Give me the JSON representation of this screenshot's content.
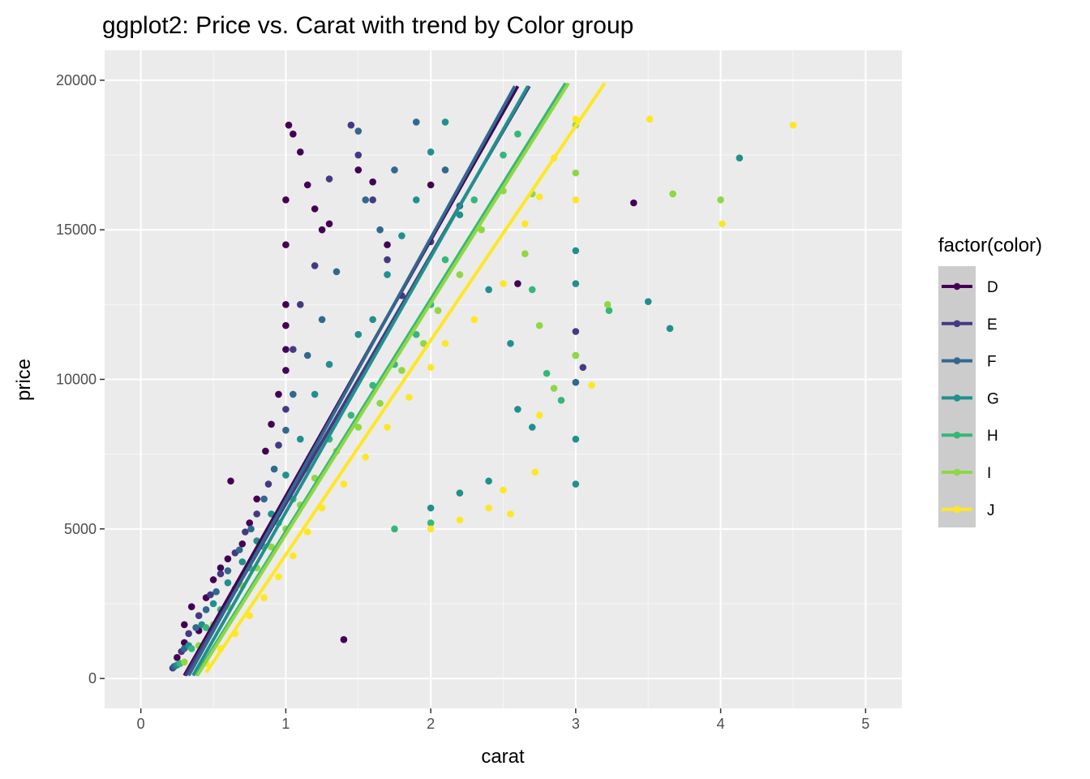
{
  "chart_data": {
    "type": "scatter",
    "title": "ggplot2: Price vs. Carat with trend by Color group",
    "xlabel": "carat",
    "ylabel": "price",
    "xlim": [
      -0.25,
      5.25
    ],
    "ylim": [
      -1000,
      21000
    ],
    "x_ticks": [
      0,
      1,
      2,
      3,
      4,
      5
    ],
    "x_tick_labels": [
      "0",
      "1",
      "2",
      "3",
      "4",
      "5"
    ],
    "y_ticks": [
      0,
      5000,
      10000,
      15000,
      20000
    ],
    "y_tick_labels": [
      "0",
      "5000",
      "10000",
      "15000",
      "20000"
    ],
    "grid": true,
    "legend": {
      "title": "factor(color)",
      "position": "right"
    },
    "series": [
      {
        "name": "D",
        "color": "#440154",
        "trend": {
          "x": [
            0.3,
            2.6
          ],
          "y": [
            100,
            19800
          ]
        },
        "points": [
          [
            0.23,
            400
          ],
          [
            0.25,
            700
          ],
          [
            0.3,
            1200
          ],
          [
            0.3,
            1800
          ],
          [
            0.35,
            2400
          ],
          [
            0.4,
            1600
          ],
          [
            0.45,
            2700
          ],
          [
            0.5,
            3300
          ],
          [
            0.55,
            3700
          ],
          [
            0.6,
            4000
          ],
          [
            0.62,
            6600
          ],
          [
            0.7,
            4500
          ],
          [
            0.75,
            5200
          ],
          [
            0.8,
            6000
          ],
          [
            0.86,
            7600
          ],
          [
            0.9,
            8500
          ],
          [
            0.95,
            9500
          ],
          [
            1.0,
            10300
          ],
          [
            1.0,
            11000
          ],
          [
            1.0,
            11800
          ],
          [
            1.0,
            12500
          ],
          [
            1.0,
            14500
          ],
          [
            1.0,
            16000
          ],
          [
            1.02,
            18500
          ],
          [
            1.05,
            18200
          ],
          [
            1.1,
            17600
          ],
          [
            1.15,
            16500
          ],
          [
            1.2,
            15700
          ],
          [
            1.25,
            15000
          ],
          [
            1.3,
            15200
          ],
          [
            1.5,
            17000
          ],
          [
            1.6,
            16600
          ],
          [
            1.7,
            14500
          ],
          [
            2.0,
            16500
          ],
          [
            2.6,
            13200
          ],
          [
            3.4,
            15900
          ],
          [
            1.4,
            1300
          ]
        ]
      },
      {
        "name": "E",
        "color": "#443A83",
        "trend": {
          "x": [
            0.31,
            2.68
          ],
          "y": [
            100,
            19800
          ]
        },
        "points": [
          [
            0.22,
            350
          ],
          [
            0.28,
            900
          ],
          [
            0.33,
            1500
          ],
          [
            0.4,
            2100
          ],
          [
            0.48,
            2800
          ],
          [
            0.55,
            3500
          ],
          [
            0.65,
            4200
          ],
          [
            0.72,
            4900
          ],
          [
            0.8,
            5500
          ],
          [
            0.88,
            6500
          ],
          [
            0.95,
            7800
          ],
          [
            1.0,
            9000
          ],
          [
            1.05,
            11000
          ],
          [
            1.1,
            12500
          ],
          [
            1.2,
            13800
          ],
          [
            1.3,
            16700
          ],
          [
            1.45,
            18500
          ],
          [
            1.5,
            17500
          ],
          [
            1.6,
            16000
          ],
          [
            1.7,
            14000
          ],
          [
            1.8,
            12800
          ],
          [
            2.0,
            14600
          ],
          [
            3.0,
            11600
          ],
          [
            3.05,
            10400
          ]
        ]
      },
      {
        "name": "F",
        "color": "#31688E",
        "trend": {
          "x": [
            0.33,
            2.58
          ],
          "y": [
            100,
            19800
          ]
        },
        "points": [
          [
            0.23,
            400
          ],
          [
            0.3,
            1000
          ],
          [
            0.38,
            1700
          ],
          [
            0.45,
            2300
          ],
          [
            0.52,
            2900
          ],
          [
            0.6,
            3600
          ],
          [
            0.68,
            4300
          ],
          [
            0.76,
            5000
          ],
          [
            0.85,
            6000
          ],
          [
            0.92,
            7000
          ],
          [
            1.0,
            8300
          ],
          [
            1.05,
            9500
          ],
          [
            1.15,
            10800
          ],
          [
            1.25,
            12000
          ],
          [
            1.35,
            13600
          ],
          [
            1.5,
            18300
          ],
          [
            1.55,
            16000
          ],
          [
            1.65,
            15000
          ],
          [
            1.75,
            17000
          ],
          [
            1.9,
            18600
          ],
          [
            2.1,
            17000
          ],
          [
            2.2,
            15800
          ],
          [
            3.0,
            9900
          ]
        ]
      },
      {
        "name": "G",
        "color": "#21908C",
        "trend": {
          "x": [
            0.36,
            2.67
          ],
          "y": [
            100,
            19800
          ]
        },
        "points": [
          [
            0.25,
            450
          ],
          [
            0.33,
            1100
          ],
          [
            0.42,
            1800
          ],
          [
            0.5,
            2500
          ],
          [
            0.6,
            3200
          ],
          [
            0.7,
            3900
          ],
          [
            0.8,
            4600
          ],
          [
            0.9,
            5500
          ],
          [
            1.0,
            6800
          ],
          [
            1.1,
            8000
          ],
          [
            1.2,
            9500
          ],
          [
            1.3,
            10500
          ],
          [
            1.5,
            11500
          ],
          [
            1.6,
            12000
          ],
          [
            1.7,
            13500
          ],
          [
            1.8,
            14800
          ],
          [
            1.9,
            16000
          ],
          [
            2.0,
            17600
          ],
          [
            2.1,
            18600
          ],
          [
            2.2,
            15500
          ],
          [
            2.4,
            13000
          ],
          [
            2.55,
            11200
          ],
          [
            2.6,
            9000
          ],
          [
            2.7,
            8400
          ],
          [
            3.0,
            14300
          ],
          [
            3.0,
            13200
          ],
          [
            3.0,
            8000
          ],
          [
            3.0,
            6500
          ],
          [
            3.5,
            12600
          ],
          [
            3.65,
            11700
          ],
          [
            4.13,
            17400
          ],
          [
            2.0,
            5700
          ],
          [
            2.2,
            6200
          ],
          [
            2.4,
            6600
          ]
        ]
      },
      {
        "name": "H",
        "color": "#35B779",
        "trend": {
          "x": [
            0.38,
            2.93
          ],
          "y": [
            100,
            19900
          ]
        },
        "points": [
          [
            0.27,
            500
          ],
          [
            0.35,
            1000
          ],
          [
            0.45,
            1700
          ],
          [
            0.55,
            2300
          ],
          [
            0.65,
            3000
          ],
          [
            0.75,
            3700
          ],
          [
            0.85,
            4400
          ],
          [
            0.95,
            5200
          ],
          [
            1.05,
            6000
          ],
          [
            1.15,
            7000
          ],
          [
            1.3,
            8000
          ],
          [
            1.45,
            8800
          ],
          [
            1.6,
            9800
          ],
          [
            1.75,
            10500
          ],
          [
            1.9,
            11500
          ],
          [
            2.0,
            12500
          ],
          [
            2.1,
            14000
          ],
          [
            2.3,
            16000
          ],
          [
            2.5,
            17500
          ],
          [
            2.6,
            18200
          ],
          [
            2.7,
            13000
          ],
          [
            2.8,
            10200
          ],
          [
            2.9,
            9300
          ],
          [
            3.0,
            10800
          ],
          [
            3.23,
            12300
          ],
          [
            1.75,
            5000
          ],
          [
            2.0,
            5200
          ]
        ]
      },
      {
        "name": "I",
        "color": "#8FD744",
        "trend": {
          "x": [
            0.39,
            2.95
          ],
          "y": [
            100,
            19900
          ]
        },
        "points": [
          [
            0.3,
            550
          ],
          [
            0.4,
            1100
          ],
          [
            0.5,
            1800
          ],
          [
            0.6,
            2400
          ],
          [
            0.7,
            3100
          ],
          [
            0.8,
            3700
          ],
          [
            0.9,
            4400
          ],
          [
            1.0,
            5000
          ],
          [
            1.1,
            5800
          ],
          [
            1.2,
            6700
          ],
          [
            1.35,
            7600
          ],
          [
            1.5,
            8400
          ],
          [
            1.65,
            9200
          ],
          [
            1.8,
            10300
          ],
          [
            1.95,
            11200
          ],
          [
            2.05,
            12300
          ],
          [
            2.2,
            13500
          ],
          [
            2.35,
            15000
          ],
          [
            2.5,
            16300
          ],
          [
            2.65,
            14200
          ],
          [
            2.75,
            11800
          ],
          [
            2.85,
            9700
          ],
          [
            3.0,
            10800
          ],
          [
            3.0,
            16900
          ],
          [
            3.0,
            18500
          ],
          [
            3.22,
            12500
          ],
          [
            3.67,
            16200
          ],
          [
            4.0,
            16000
          ],
          [
            2.7,
            16200
          ]
        ]
      },
      {
        "name": "J",
        "color": "#FDE725",
        "trend": {
          "x": [
            0.45,
            3.2
          ],
          "y": [
            200,
            19900
          ]
        },
        "points": [
          [
            0.45,
            500
          ],
          [
            0.55,
            1000
          ],
          [
            0.65,
            1500
          ],
          [
            0.75,
            2100
          ],
          [
            0.85,
            2700
          ],
          [
            0.95,
            3400
          ],
          [
            1.05,
            4100
          ],
          [
            1.15,
            4900
          ],
          [
            1.25,
            5700
          ],
          [
            1.4,
            6500
          ],
          [
            1.55,
            7400
          ],
          [
            1.7,
            8400
          ],
          [
            1.85,
            9400
          ],
          [
            2.0,
            10400
          ],
          [
            2.1,
            11200
          ],
          [
            2.3,
            12000
          ],
          [
            2.5,
            13200
          ],
          [
            2.65,
            15200
          ],
          [
            2.75,
            16100
          ],
          [
            2.85,
            17400
          ],
          [
            3.0,
            16000
          ],
          [
            3.0,
            18700
          ],
          [
            2.55,
            5500
          ],
          [
            2.5,
            6300
          ],
          [
            2.72,
            6900
          ],
          [
            2.75,
            8800
          ],
          [
            3.11,
            9800
          ],
          [
            3.51,
            18700
          ],
          [
            4.01,
            15200
          ],
          [
            4.5,
            18500
          ],
          [
            2.0,
            5000
          ],
          [
            2.2,
            5300
          ],
          [
            2.4,
            5700
          ]
        ]
      }
    ]
  }
}
